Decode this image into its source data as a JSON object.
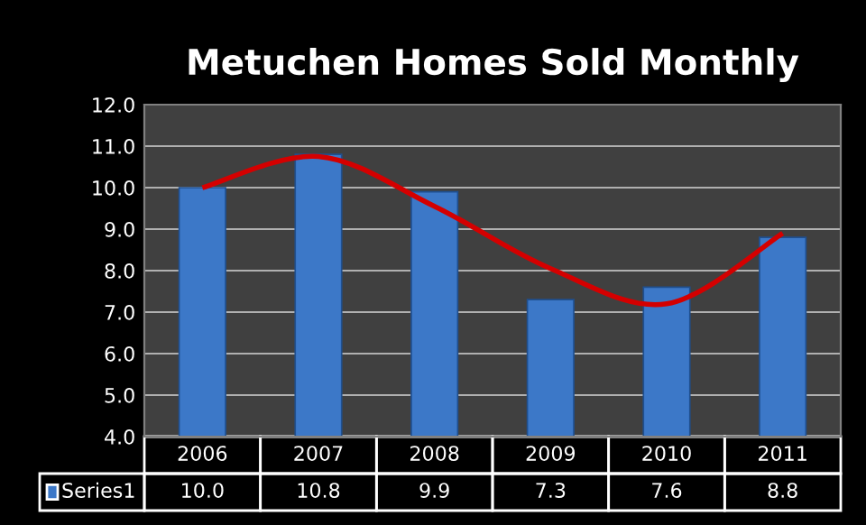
{
  "chart_data": {
    "type": "bar",
    "title": "Metuchen Homes Sold Monthly",
    "categories": [
      "2006",
      "2007",
      "2008",
      "2009",
      "2010",
      "2011"
    ],
    "series": [
      {
        "name": "Series1",
        "color": "#3c78c8",
        "values": [
          10.0,
          10.8,
          9.9,
          7.3,
          7.6,
          8.8
        ],
        "value_labels": [
          "10.0",
          "10.8",
          "9.9",
          "7.3",
          "7.6",
          "8.8"
        ]
      },
      {
        "type": "line",
        "color": "#d40000",
        "values": [
          10.0,
          10.75,
          9.55,
          8.05,
          7.2,
          8.9
        ]
      }
    ],
    "ylim": [
      4,
      12
    ],
    "yticks": [
      {
        "value": 4,
        "label": "4.0"
      },
      {
        "value": 5,
        "label": "5.0"
      },
      {
        "value": 6,
        "label": "6.0"
      },
      {
        "value": 7,
        "label": "7.0"
      },
      {
        "value": 8,
        "label": "8.0"
      },
      {
        "value": 9,
        "label": "9.0"
      },
      {
        "value": 10,
        "label": "10.0"
      },
      {
        "value": 11,
        "label": "11.0"
      },
      {
        "value": 12,
        "label": "12.0"
      }
    ],
    "grid": "y",
    "legend": "bottom left"
  }
}
